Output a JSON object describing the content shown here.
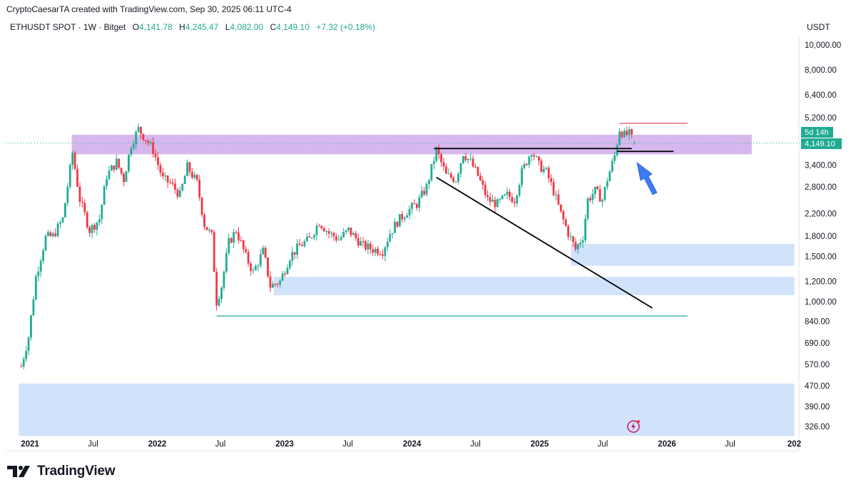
{
  "header": {
    "credit": "CryptoCaesarTA created with TradingView.com, Sep 30, 2025 06:11 UTC-4",
    "symbol": "ETHUSDT SPOT · 1W · Bitget",
    "open_label": "O",
    "open": "4,141.78",
    "high_label": "H",
    "high": "4,245.47",
    "low_label": "L",
    "low": "4,082.00",
    "close_label": "C",
    "close": "4,149.10",
    "change": "+7.32 (+0.18%)",
    "currency": "USDT"
  },
  "price_tag": {
    "countdown": "5d 14h",
    "price": "4,149.10",
    "color": "#22ab94"
  },
  "brand": {
    "name": "TradingView"
  },
  "colors": {
    "up": "#22ab94",
    "down": "#f23645",
    "resistance_zone": "#c9a0e8",
    "support_zone": "#cfe0fb",
    "trendline": "#000000",
    "support_line": "#22ab94",
    "arrow": "#3d7bf2"
  },
  "chart_data": {
    "type": "candlestick",
    "symbol": "ETHUSDT",
    "timeframe": "1W",
    "y_scale": "log",
    "ylim": [
      300,
      12000
    ],
    "xlim": [
      "2020-11-30",
      "2026-12-31"
    ],
    "y_ticks": [
      {
        "value": 10000,
        "label": "10,000.00"
      },
      {
        "value": 8000,
        "label": "8,000.00"
      },
      {
        "value": 6400,
        "label": "6,400.00"
      },
      {
        "value": 5200,
        "label": "5,200.00"
      },
      {
        "value": 3400,
        "label": "3,400.00"
      },
      {
        "value": 2800,
        "label": "2,800.00"
      },
      {
        "value": 2200,
        "label": "2,200.00"
      },
      {
        "value": 1800,
        "label": "1,800.00"
      },
      {
        "value": 1500,
        "label": "1,500.00"
      },
      {
        "value": 1200,
        "label": "1,200.00"
      },
      {
        "value": 1000,
        "label": "1,000.00"
      },
      {
        "value": 840,
        "label": "840.00"
      },
      {
        "value": 690,
        "label": "690.00"
      },
      {
        "value": 570,
        "label": "570.00"
      },
      {
        "value": 470,
        "label": "470.00"
      },
      {
        "value": 390,
        "label": "390.00"
      },
      {
        "value": 326,
        "label": "326.00"
      }
    ],
    "x_ticks": [
      {
        "date": "2021-01-01",
        "label": "2021",
        "bold": true
      },
      {
        "date": "2021-07-01",
        "label": "Jul",
        "bold": false
      },
      {
        "date": "2022-01-01",
        "label": "2022",
        "bold": true
      },
      {
        "date": "2022-07-01",
        "label": "Jul",
        "bold": false
      },
      {
        "date": "2023-01-01",
        "label": "2023",
        "bold": true
      },
      {
        "date": "2023-07-01",
        "label": "Jul",
        "bold": false
      },
      {
        "date": "2024-01-01",
        "label": "2024",
        "bold": true
      },
      {
        "date": "2024-07-01",
        "label": "Jul",
        "bold": false
      },
      {
        "date": "2025-01-01",
        "label": "2025",
        "bold": true
      },
      {
        "date": "2025-07-01",
        "label": "Jul",
        "bold": false
      },
      {
        "date": "2026-01-01",
        "label": "2026",
        "bold": true
      },
      {
        "date": "2026-07-01",
        "label": "Jul",
        "bold": false
      },
      {
        "date": "2027-01-01",
        "label": "202",
        "bold": true
      }
    ],
    "close_path": [
      [
        "2020-12-07",
        560
      ],
      [
        "2020-12-28",
        730
      ],
      [
        "2021-01-18",
        1250
      ],
      [
        "2021-02-15",
        1780
      ],
      [
        "2021-03-08",
        1800
      ],
      [
        "2021-04-05",
        2100
      ],
      [
        "2021-05-03",
        3800
      ],
      [
        "2021-05-24",
        2500
      ],
      [
        "2021-06-21",
        1900
      ],
      [
        "2021-07-19",
        2100
      ],
      [
        "2021-08-09",
        3100
      ],
      [
        "2021-09-06",
        3500
      ],
      [
        "2021-09-27",
        3000
      ],
      [
        "2021-10-18",
        4100
      ],
      [
        "2021-11-08",
        4700
      ],
      [
        "2021-11-29",
        4300
      ],
      [
        "2021-12-20",
        3900
      ],
      [
        "2022-01-17",
        3000
      ],
      [
        "2022-02-07",
        2900
      ],
      [
        "2022-03-07",
        2600
      ],
      [
        "2022-03-28",
        3350
      ],
      [
        "2022-04-25",
        2900
      ],
      [
        "2022-05-16",
        2000
      ],
      [
        "2022-06-06",
        1800
      ],
      [
        "2022-06-20",
        1000
      ],
      [
        "2022-07-04",
        1150
      ],
      [
        "2022-07-25",
        1700
      ],
      [
        "2022-08-15",
        1900
      ],
      [
        "2022-09-12",
        1500
      ],
      [
        "2022-10-03",
        1300
      ],
      [
        "2022-11-01",
        1580
      ],
      [
        "2022-11-21",
        1150
      ],
      [
        "2022-12-19",
        1200
      ],
      [
        "2023-01-16",
        1500
      ],
      [
        "2023-02-13",
        1650
      ],
      [
        "2023-03-13",
        1750
      ],
      [
        "2023-04-10",
        2050
      ],
      [
        "2023-05-08",
        1850
      ],
      [
        "2023-06-05",
        1750
      ],
      [
        "2023-07-03",
        1900
      ],
      [
        "2023-08-14",
        1650
      ],
      [
        "2023-09-11",
        1600
      ],
      [
        "2023-10-09",
        1580
      ],
      [
        "2023-10-30",
        1850
      ],
      [
        "2023-11-20",
        2050
      ],
      [
        "2023-12-18",
        2250
      ],
      [
        "2024-01-15",
        2400
      ],
      [
        "2024-02-12",
        2800
      ],
      [
        "2024-03-11",
        3900
      ],
      [
        "2024-04-08",
        3100
      ],
      [
        "2024-05-06",
        3000
      ],
      [
        "2024-05-27",
        3800
      ],
      [
        "2024-06-17",
        3500
      ],
      [
        "2024-07-08",
        3100
      ],
      [
        "2024-08-05",
        2500
      ],
      [
        "2024-09-02",
        2400
      ],
      [
        "2024-09-30",
        2600
      ],
      [
        "2024-10-21",
        2500
      ],
      [
        "2024-11-11",
        3200
      ],
      [
        "2024-12-09",
        3900
      ],
      [
        "2024-12-30",
        3400
      ],
      [
        "2025-01-20",
        3200
      ],
      [
        "2025-02-10",
        2700
      ],
      [
        "2025-03-03",
        2200
      ],
      [
        "2025-03-24",
        1850
      ],
      [
        "2025-04-14",
        1600
      ],
      [
        "2025-05-05",
        1800
      ],
      [
        "2025-05-19",
        2500
      ],
      [
        "2025-06-09",
        2700
      ],
      [
        "2025-06-30",
        2500
      ],
      [
        "2025-07-14",
        3000
      ],
      [
        "2025-08-04",
        3700
      ],
      [
        "2025-08-18",
        4700
      ],
      [
        "2025-09-01",
        4450
      ],
      [
        "2025-09-15",
        4500
      ],
      [
        "2025-09-29",
        4149
      ]
    ],
    "zones": [
      {
        "kind": "resistance",
        "y_low": 3750,
        "y_high": 4470,
        "from": "2021-05-01",
        "to": "2026-09-01"
      },
      {
        "kind": "support",
        "y_low": 1380,
        "y_high": 1680,
        "from": "2025-04-01",
        "to": "2027-01-01"
      },
      {
        "kind": "support",
        "y_low": 1060,
        "y_high": 1250,
        "from": "2022-12-01",
        "to": "2027-01-01"
      },
      {
        "kind": "support",
        "y_low": 300,
        "y_high": 480,
        "from": "2020-11-30",
        "to": "2027-01-01"
      }
    ],
    "lines": [
      {
        "kind": "resistance",
        "from": [
          "2024-03-04",
          3950
        ],
        "to": [
          "2025-09-22",
          3950
        ]
      },
      {
        "kind": "neckline",
        "from": [
          "2025-08-11",
          3850
        ],
        "to": [
          "2026-01-20",
          3850
        ]
      },
      {
        "kind": "descending-trendline",
        "from": [
          "2024-03-11",
          3050
        ],
        "to": [
          "2025-11-20",
          945
        ]
      },
      {
        "kind": "support",
        "from": [
          "2022-06-20",
          880
        ],
        "to": [
          "2026-03-01",
          880
        ]
      },
      {
        "kind": "high",
        "from": [
          "2025-08-18",
          4950
        ],
        "to": [
          "2026-03-01",
          4950
        ]
      }
    ],
    "annotation": {
      "kind": "arrow",
      "points_to": [
        "2025-09-29",
        3850
      ]
    }
  }
}
